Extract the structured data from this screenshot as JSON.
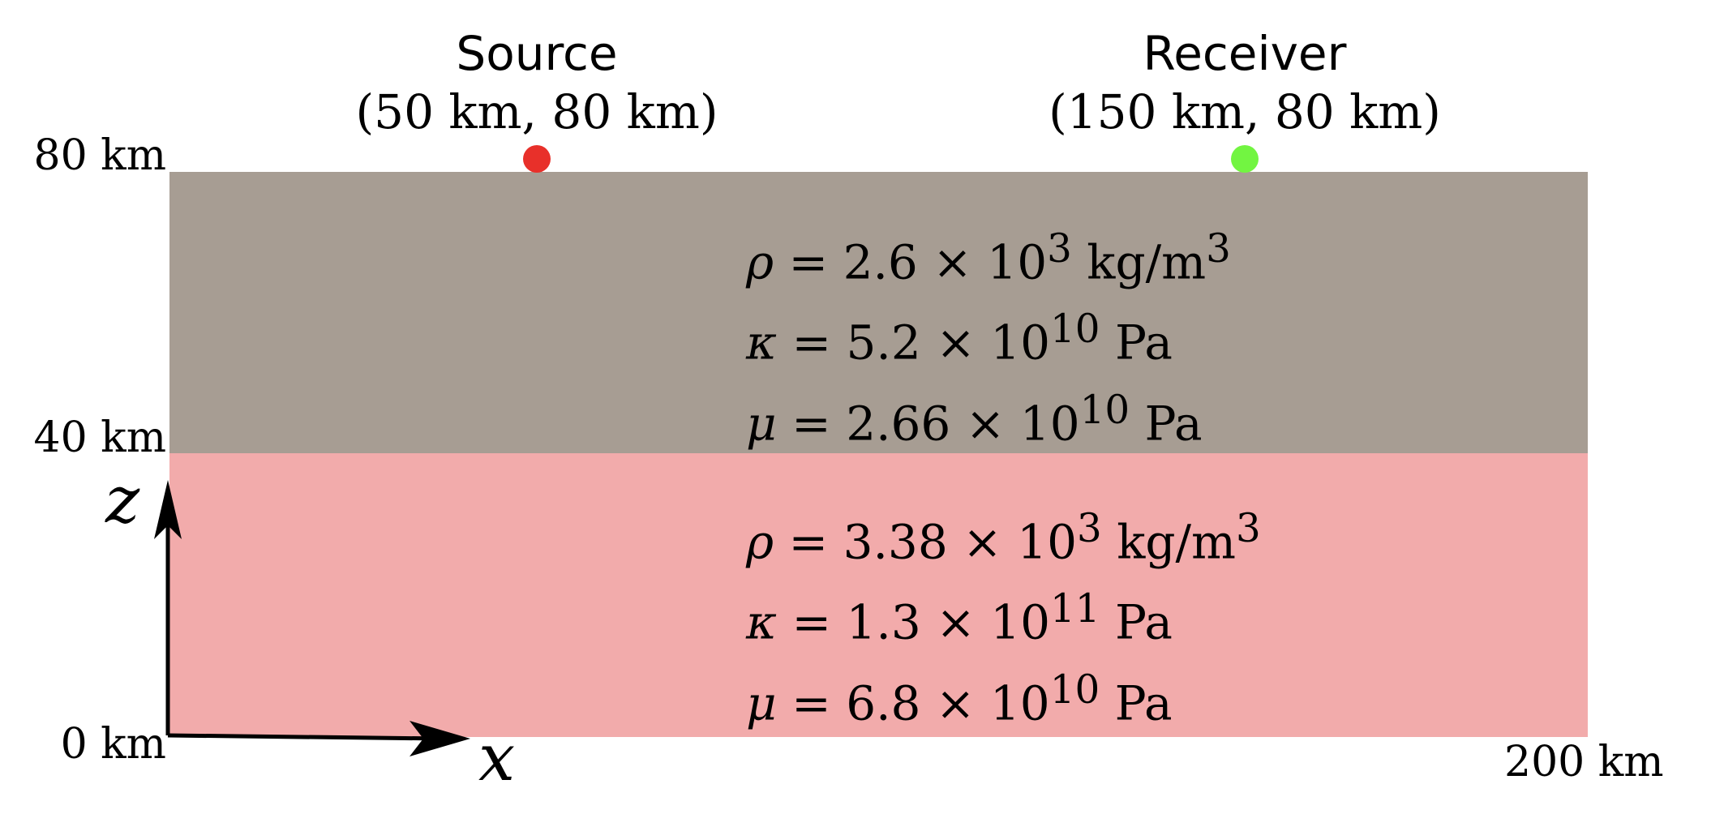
{
  "source": {
    "title": "Source",
    "coords": "(50 km, 80 km)",
    "color": "#e8302a"
  },
  "receiver": {
    "title": "Receiver",
    "coords": "(150 km, 80 km)",
    "color": "#72f541"
  },
  "depth_ticks": {
    "top": "80 km",
    "middle": "40 km",
    "bottom": "0 km"
  },
  "x_tick_right": "200 km",
  "axes": {
    "z": "z",
    "x": "x"
  },
  "upper_layer": {
    "color": "#a79d93",
    "rho": {
      "symbol": "ρ",
      "value": "2.6 × 10",
      "exp": "3",
      "unit": " kg/m",
      "unit_exp": "3"
    },
    "kappa": {
      "symbol": "κ",
      "value": "5.2 × 10",
      "exp": "10",
      "unit": " Pa"
    },
    "mu": {
      "symbol": "μ",
      "value": "2.66 × 10",
      "exp": "10",
      "unit": " Pa"
    }
  },
  "lower_layer": {
    "color": "#f2abab",
    "rho": {
      "symbol": "ρ",
      "value": "3.38 × 10",
      "exp": "3",
      "unit": " kg/m",
      "unit_exp": "3"
    },
    "kappa": {
      "symbol": "κ",
      "value": "1.3 × 10",
      "exp": "11",
      "unit": " Pa"
    },
    "mu": {
      "symbol": "μ",
      "value": "6.8 × 10",
      "exp": "10",
      "unit": " Pa"
    }
  }
}
